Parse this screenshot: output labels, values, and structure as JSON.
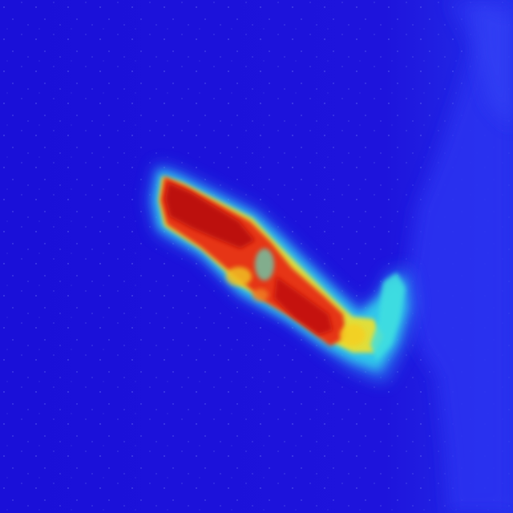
{
  "image": {
    "subject": "thermal-heatmap-arm",
    "palette": {
      "background": "#1a10d8",
      "cool": "#2a3cf0",
      "mid": "#2ec8e8",
      "warm": "#f0e020",
      "hot": "#e83010",
      "hottest": "#b00808"
    }
  }
}
